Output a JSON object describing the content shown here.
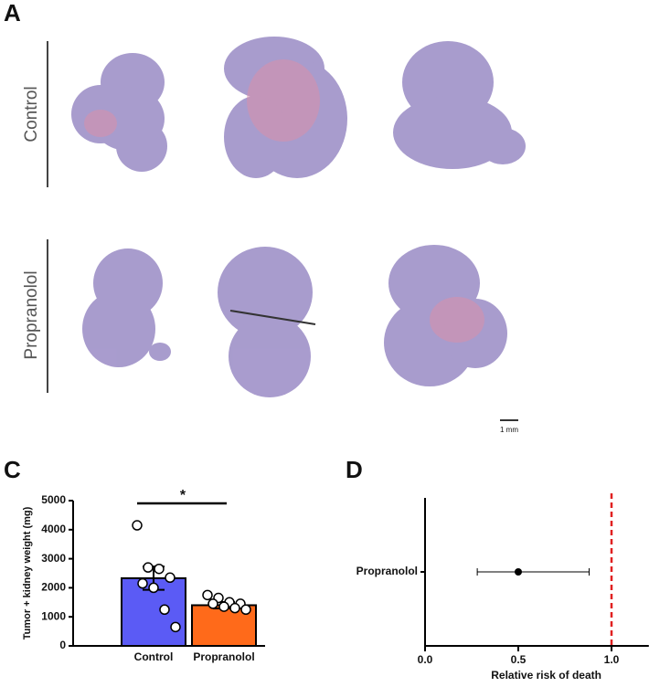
{
  "panel_labels": [
    "A",
    "C",
    "D"
  ],
  "histology": {
    "rows": [
      "Control",
      "Propranolol"
    ],
    "scale_bar": "1 mm"
  },
  "chart_data": [
    {
      "type": "bar",
      "categories": [
        "Control",
        "Propranolol"
      ],
      "values": [
        2330,
        1400
      ],
      "errors": [
        400,
        110
      ],
      "points": [
        [
          4150,
          2700,
          2650,
          2350,
          2150,
          2000,
          1250,
          650
        ],
        [
          1750,
          1650,
          1500,
          1450,
          1450,
          1350,
          1300,
          1250
        ]
      ],
      "colors": [
        "#5b5bf5",
        "#ff6a1a"
      ],
      "ylabel": "Tumor + kidney weight (mg)",
      "ylim": [
        0,
        5000
      ],
      "yticks": [
        0,
        1000,
        2000,
        3000,
        4000,
        5000
      ],
      "annotation": "*"
    },
    {
      "type": "forest",
      "categories": [
        "Propranolol"
      ],
      "values": [
        0.5
      ],
      "ci_low": [
        0.28
      ],
      "ci_high": [
        0.88
      ],
      "xlabel": "Relative risk of death",
      "xlim": [
        0,
        1.2
      ],
      "xticks": [
        {
          "value": 0,
          "label": "0.0"
        },
        {
          "value": 0.5,
          "label": "0.5"
        },
        {
          "value": 1,
          "label": "1.0"
        }
      ],
      "reference": 1,
      "reference_color": "#e02020"
    }
  ]
}
